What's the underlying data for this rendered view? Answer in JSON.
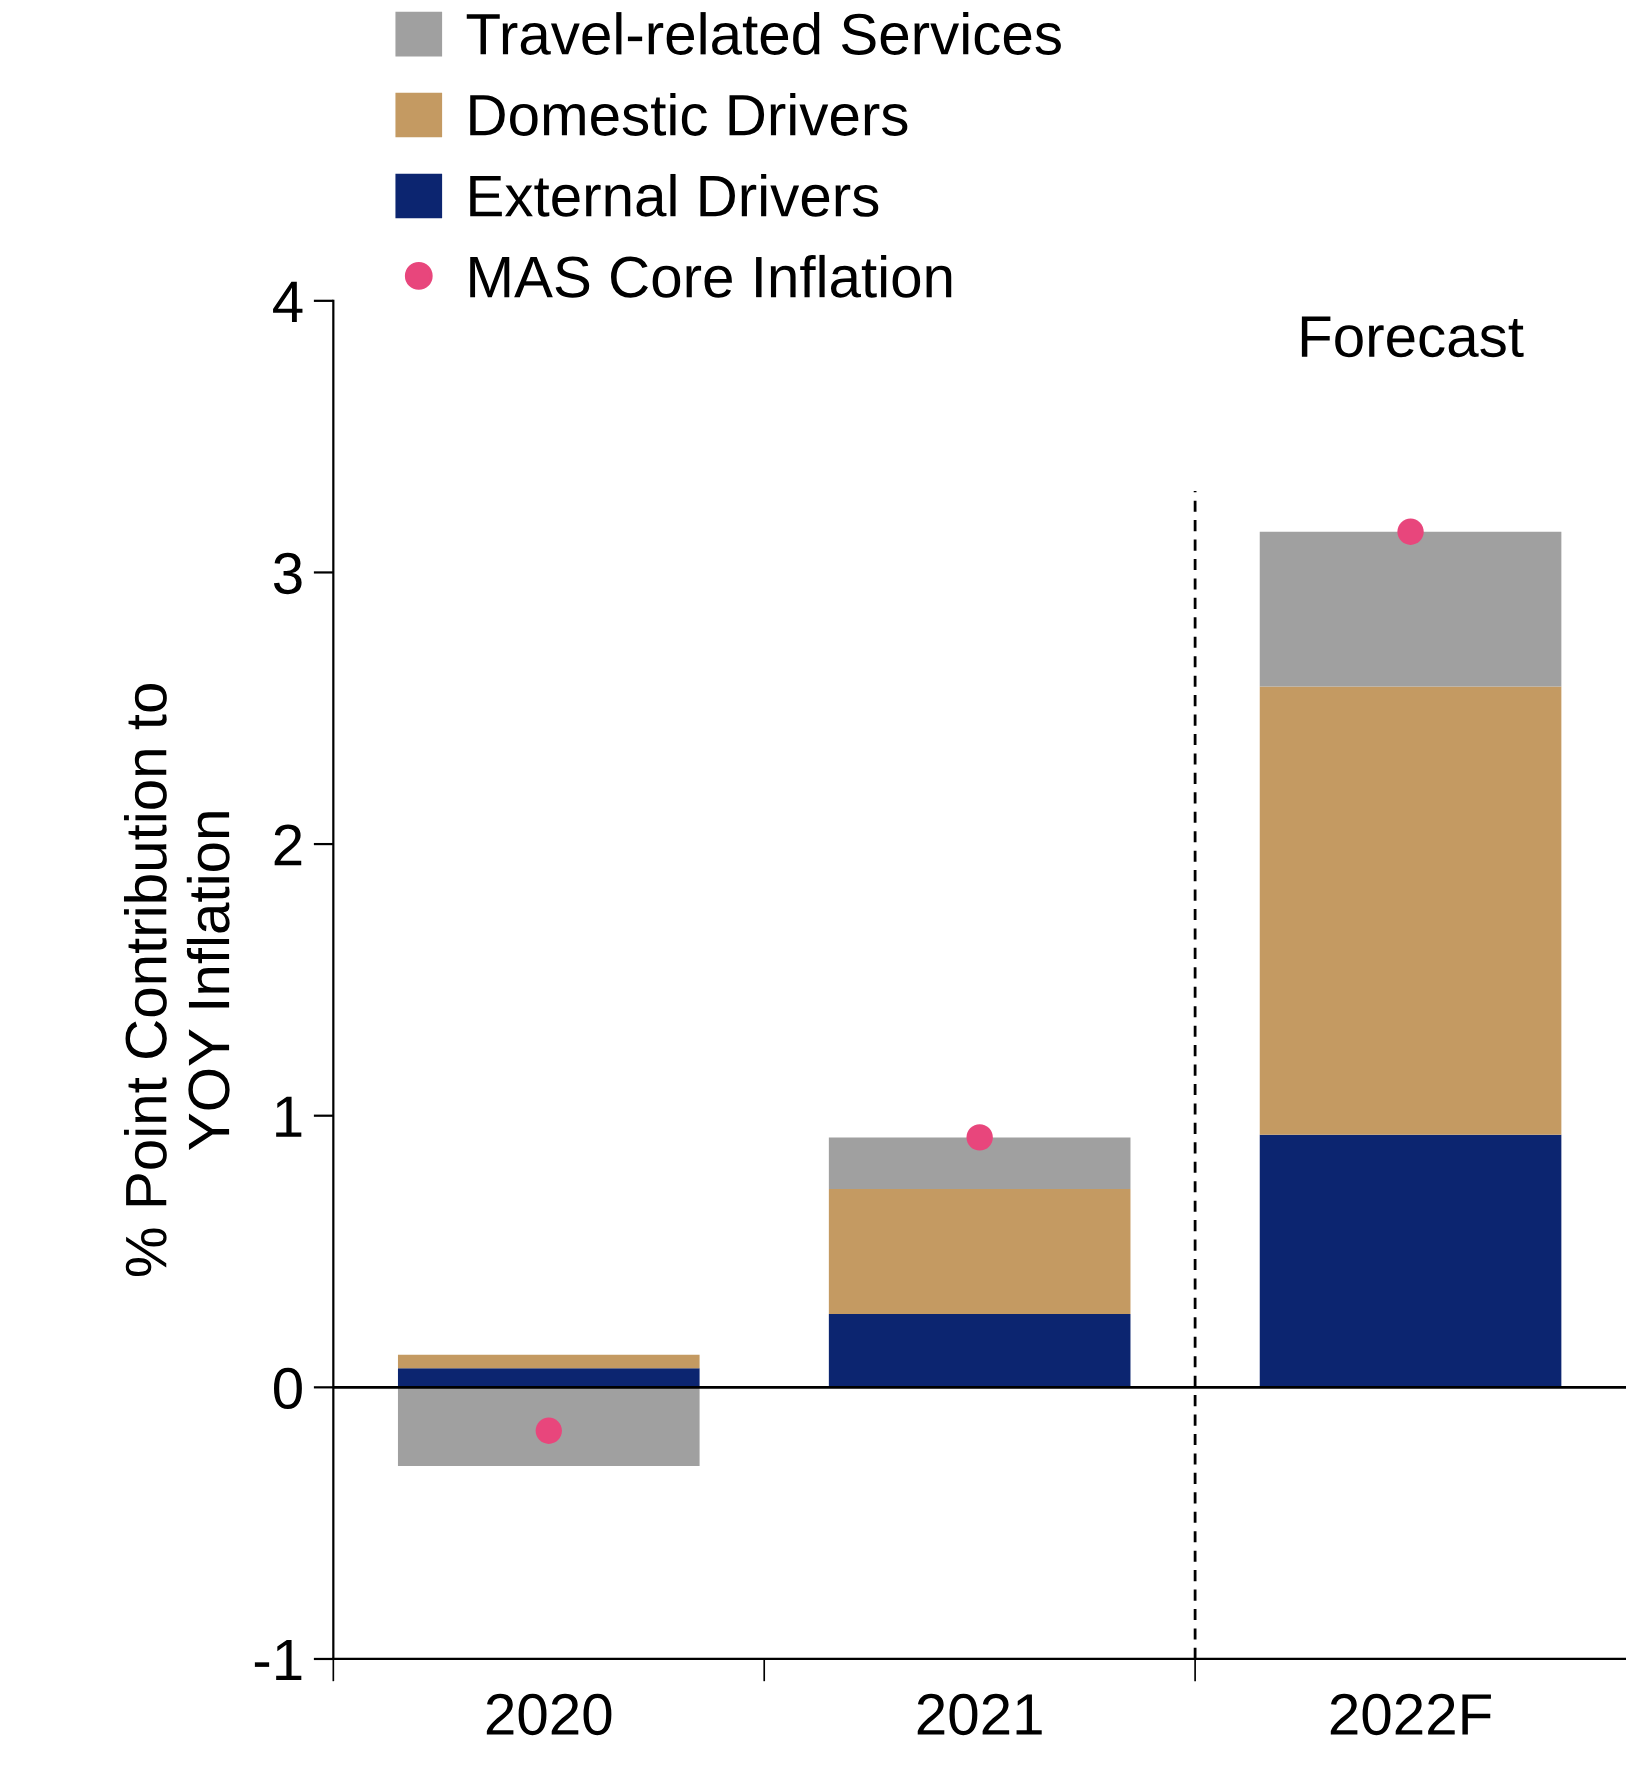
{
  "chart_data": {
    "type": "bar",
    "stacked": true,
    "categories": [
      "2020",
      "2021",
      "2022F"
    ],
    "ylabel": "% Point Contribution to\nYOY Inflation",
    "ylim": [
      -1,
      4
    ],
    "yticks": [
      -1,
      0,
      1,
      2,
      3,
      4
    ],
    "grid": false,
    "legend": "top left",
    "series": [
      {
        "name": "External Drivers",
        "color": "#0c2570",
        "values": [
          0.07,
          0.27,
          0.93
        ]
      },
      {
        "name": "Domestic Drivers",
        "color": "#c49a62",
        "values": [
          0.05,
          0.46,
          1.65
        ]
      },
      {
        "name": "Travel-related Services",
        "color": "#a0a0a0",
        "values": [
          -0.29,
          0.19,
          0.57
        ]
      },
      {
        "name": "MAS Core Inflation",
        "type": "scatter",
        "color": "#e8467c",
        "marker": "circle",
        "values": [
          -0.16,
          0.92,
          3.15
        ]
      }
    ],
    "ref_lines": [
      {
        "axis": "y",
        "value": 0,
        "color": "#000000",
        "line_style": "solid"
      },
      {
        "axis": "x",
        "value": "2022F",
        "label": "Forecast",
        "color": "#000000",
        "line_style": "dashed"
      }
    ]
  }
}
